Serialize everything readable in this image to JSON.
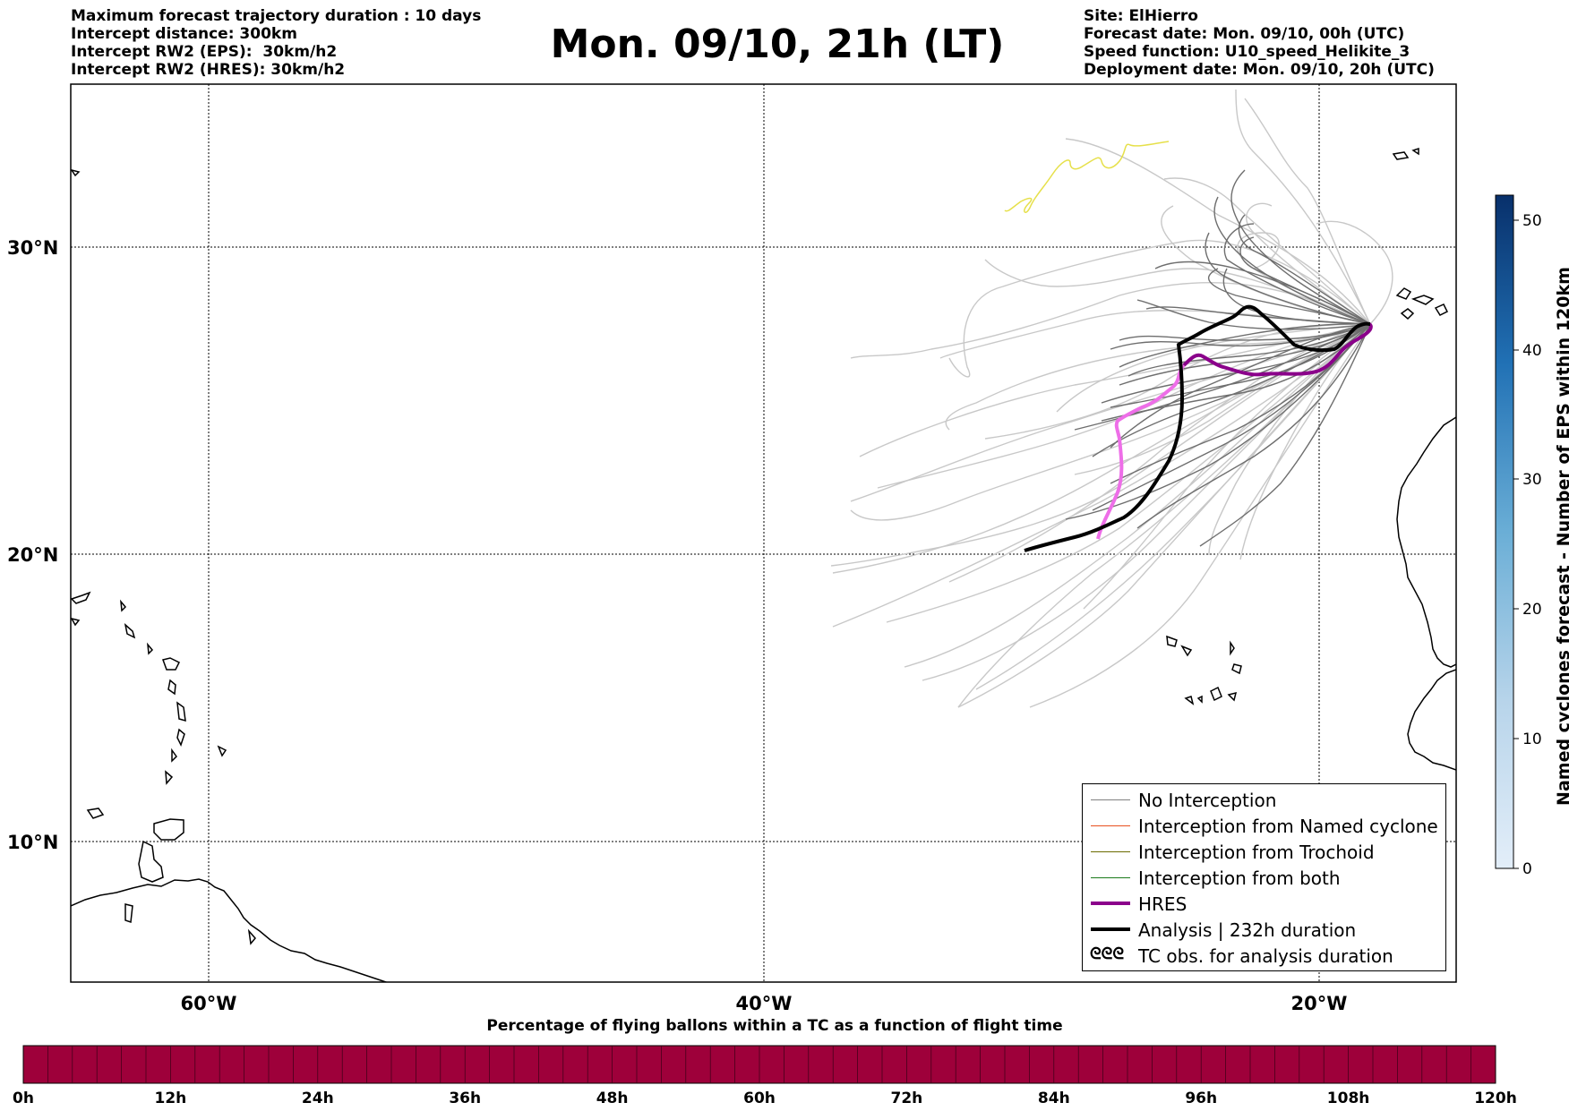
{
  "header": {
    "left_lines": [
      "Maximum forecast trajectory duration : 10 days",
      "Intercept distance: 300km",
      "Intercept RW2 (EPS):  30km/h2",
      "Intercept RW2 (HRES): 30km/h2"
    ],
    "title": "Mon. 09/10, 21h (LT)",
    "right_lines": [
      "Site: ElHierro",
      "Forecast date: Mon. 09/10, 00h (UTC)",
      "Speed function: U10_speed_Helikite_3",
      "Deployment date: Mon. 09/10, 20h (UTC)"
    ]
  },
  "map": {
    "lat_labels": [
      "30°N",
      "20°N",
      "10°N"
    ],
    "lon_labels": [
      "60°W",
      "40°W",
      "20°W"
    ],
    "colors": {
      "eps_no_interception": "#7a7a7a",
      "eps_light": "#c8c8c8",
      "hres": "#8b008b",
      "hres_light": "#ee6ee8",
      "analysis": "#000000",
      "tc_obs": "#e6e04a"
    }
  },
  "legend": {
    "items": [
      {
        "label": "No Interception",
        "color": "#808080",
        "width": 1
      },
      {
        "label": "Interception from Named cyclone",
        "color": "#e8501e",
        "width": 1
      },
      {
        "label": "Interception from Trochoid",
        "color": "#6b6b00",
        "width": 1
      },
      {
        "label": "Interception from both",
        "color": "#1a7a1a",
        "width": 1
      },
      {
        "label": "HRES",
        "color": "#8b008b",
        "width": 4
      },
      {
        "label": "Analysis | 232h duration",
        "color": "#000000",
        "width": 4
      }
    ],
    "tc_obs": {
      "symbol": "ᘓᘓᘓ",
      "label": "TC obs. for analysis duration"
    }
  },
  "colorbar_right": {
    "title": "Named cyclones forecast - Number of EPS within 120km",
    "ticks": [
      "0",
      "10",
      "20",
      "30",
      "40",
      "50"
    ],
    "color_low": "#e3eef9",
    "color_high": "#08306b"
  },
  "colorbar_bottom": {
    "title": "Percentage of flying ballons within a TC as a function of flight time",
    "ticks": [
      "0h",
      "12h",
      "24h",
      "36h",
      "48h",
      "60h",
      "72h",
      "84h",
      "96h",
      "108h",
      "120h"
    ],
    "fill_color": "#9e003a"
  }
}
